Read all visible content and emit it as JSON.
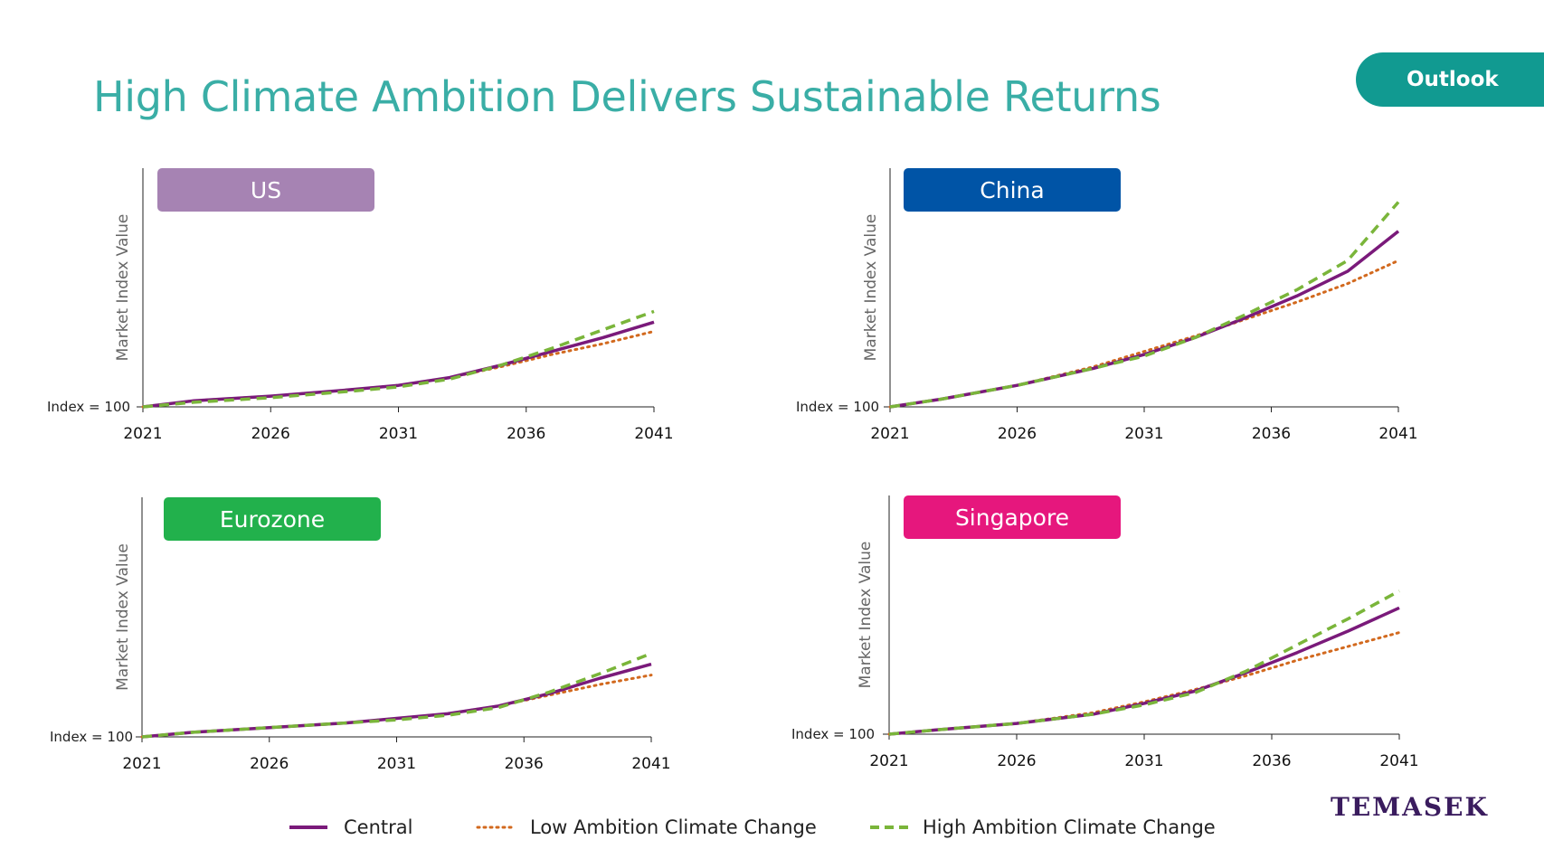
{
  "page": {
    "title": "High Climate Ambition Delivers Sustainable Returns",
    "badge": "Outlook",
    "logo": "TEMASEK"
  },
  "colors": {
    "title": "#3aaea6",
    "badge": "#119a91",
    "central": "#7a1a7a",
    "low": "#d2691e",
    "high": "#7ab53a"
  },
  "legend": [
    {
      "key": "central",
      "label": "Central",
      "style": "solid"
    },
    {
      "key": "low",
      "label": "Low Ambition Climate Change",
      "style": "dotted"
    },
    {
      "key": "high",
      "label": "High Ambition Climate Change",
      "style": "dashed"
    }
  ],
  "chart_data": [
    {
      "type": "line",
      "title": "US",
      "title_color": "#a683b3",
      "ylabel": "Market Index Value",
      "baseline_label": "Index = 100",
      "xticks": [
        2021,
        2026,
        2031,
        2036,
        2041
      ],
      "xlim": [
        2021,
        2041
      ],
      "ylim": [
        100,
        255
      ],
      "series": [
        {
          "name": "Central",
          "key": "central",
          "x": [
            2021,
            2023,
            2026,
            2029,
            2031,
            2033,
            2035,
            2037,
            2039,
            2041
          ],
          "y": [
            100,
            104,
            107,
            111,
            114,
            119,
            127,
            136,
            145,
            155
          ]
        },
        {
          "name": "Low Ambition Climate Change",
          "key": "low",
          "x": [
            2021,
            2023,
            2026,
            2029,
            2031,
            2033,
            2035,
            2037,
            2039,
            2041
          ],
          "y": [
            100,
            104,
            107,
            111,
            114,
            119,
            126,
            134,
            141,
            149
          ]
        },
        {
          "name": "High Ambition Climate Change",
          "key": "high",
          "x": [
            2021,
            2023,
            2026,
            2029,
            2031,
            2033,
            2035,
            2037,
            2039,
            2041
          ],
          "y": [
            100,
            103,
            106,
            110,
            113,
            118,
            127,
            138,
            150,
            162
          ]
        }
      ]
    },
    {
      "type": "line",
      "title": "China",
      "title_color": "#0054a6",
      "ylabel": "Market Index Value",
      "baseline_label": "Index = 100",
      "xticks": [
        2021,
        2026,
        2031,
        2036,
        2041
      ],
      "xlim": [
        2021,
        2041
      ],
      "ylim": [
        100,
        255
      ],
      "series": [
        {
          "name": "Central",
          "key": "central",
          "x": [
            2021,
            2023,
            2026,
            2029,
            2031,
            2033,
            2035,
            2037,
            2039,
            2041
          ],
          "y": [
            100,
            105,
            114,
            125,
            134,
            145,
            158,
            172,
            188,
            214
          ]
        },
        {
          "name": "Low Ambition Climate Change",
          "key": "low",
          "x": [
            2021,
            2023,
            2026,
            2029,
            2031,
            2033,
            2035,
            2037,
            2039,
            2041
          ],
          "y": [
            100,
            105,
            114,
            126,
            136,
            146,
            157,
            168,
            180,
            195
          ]
        },
        {
          "name": "High Ambition Climate Change",
          "key": "high",
          "x": [
            2021,
            2023,
            2026,
            2029,
            2031,
            2033,
            2035,
            2037,
            2039,
            2041
          ],
          "y": [
            100,
            105,
            114,
            125,
            133,
            145,
            160,
            176,
            195,
            233
          ]
        }
      ]
    },
    {
      "type": "line",
      "title": "Eurozone",
      "title_color": "#22b14c",
      "ylabel": "Market Index Value",
      "baseline_label": "Index = 100",
      "xticks": [
        2021,
        2026,
        2031,
        2036,
        2041
      ],
      "xlim": [
        2021,
        2041
      ],
      "ylim": [
        100,
        255
      ],
      "series": [
        {
          "name": "Central",
          "key": "central",
          "x": [
            2021,
            2023,
            2026,
            2029,
            2031,
            2033,
            2035,
            2037,
            2039,
            2041
          ],
          "y": [
            100,
            103,
            106,
            109,
            112,
            115,
            120,
            128,
            138,
            147
          ]
        },
        {
          "name": "Low Ambition Climate Change",
          "key": "low",
          "x": [
            2021,
            2023,
            2026,
            2029,
            2031,
            2033,
            2035,
            2037,
            2039,
            2041
          ],
          "y": [
            100,
            103,
            106,
            109,
            112,
            115,
            120,
            127,
            134,
            140
          ]
        },
        {
          "name": "High Ambition Climate Change",
          "key": "high",
          "x": [
            2021,
            2023,
            2026,
            2029,
            2031,
            2033,
            2035,
            2037,
            2039,
            2041
          ],
          "y": [
            100,
            103,
            106,
            109,
            111,
            114,
            119,
            129,
            141,
            154
          ]
        }
      ]
    },
    {
      "type": "line",
      "title": "Singapore",
      "title_color": "#e6177d",
      "ylabel": "Market Index Value",
      "baseline_label": "Index = 100",
      "xticks": [
        2021,
        2026,
        2031,
        2036,
        2041
      ],
      "xlim": [
        2021,
        2041
      ],
      "ylim": [
        100,
        255
      ],
      "series": [
        {
          "name": "Central",
          "key": "central",
          "x": [
            2021,
            2023,
            2026,
            2029,
            2031,
            2033,
            2035,
            2037,
            2039,
            2041
          ],
          "y": [
            100,
            103,
            107,
            113,
            120,
            128,
            140,
            153,
            167,
            182
          ]
        },
        {
          "name": "Low Ambition Climate Change",
          "key": "low",
          "x": [
            2021,
            2023,
            2026,
            2029,
            2031,
            2033,
            2035,
            2037,
            2039,
            2041
          ],
          "y": [
            100,
            103,
            107,
            114,
            121,
            129,
            138,
            148,
            157,
            166
          ]
        },
        {
          "name": "High Ambition Climate Change",
          "key": "high",
          "x": [
            2021,
            2023,
            2026,
            2029,
            2031,
            2033,
            2035,
            2037,
            2039,
            2041
          ],
          "y": [
            100,
            103,
            107,
            113,
            119,
            127,
            141,
            158,
            175,
            193
          ]
        }
      ]
    }
  ]
}
